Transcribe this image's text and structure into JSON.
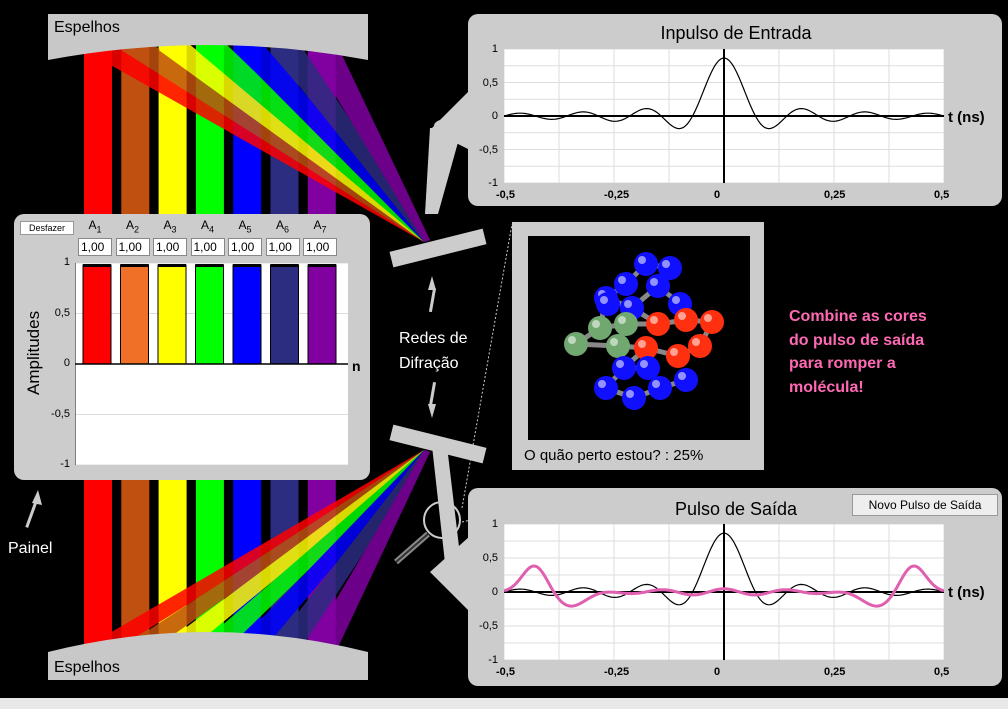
{
  "mirrors": {
    "top_label": "Espelhos",
    "bottom_label": "Espelhos"
  },
  "panel": {
    "undo_button": "Desfazer",
    "ylabel": "Amplitudes",
    "xlabel": "n",
    "yticks": [
      "1",
      "0,5",
      "0",
      "-0,5",
      "-1"
    ],
    "amplitudes": [
      {
        "label": "A",
        "sub": "1",
        "value": "1,00",
        "v": 1.0,
        "color": "#ff0000"
      },
      {
        "label": "A",
        "sub": "2",
        "value": "1,00",
        "v": 1.0,
        "color": "#f07028"
      },
      {
        "label": "A",
        "sub": "3",
        "value": "1,00",
        "v": 1.0,
        "color": "#ffff00"
      },
      {
        "label": "A",
        "sub": "4",
        "value": "1,00",
        "v": 1.0,
        "color": "#00ff00"
      },
      {
        "label": "A",
        "sub": "5",
        "value": "1,00",
        "v": 1.0,
        "color": "#0000ff"
      },
      {
        "label": "A",
        "sub": "6",
        "value": "1,00",
        "v": 1.0,
        "color": "#2c2c80"
      },
      {
        "label": "A",
        "sub": "7",
        "value": "1,00",
        "v": 1.0,
        "color": "#8000a0"
      }
    ]
  },
  "labels": {
    "panel_caption": "Painel",
    "gratings_line1": "Redes de",
    "gratings_line2": "Difração",
    "message": [
      "Combine as cores",
      "do pulso de saída",
      "para romper a",
      "molécula!"
    ]
  },
  "molecule": {
    "progress_label": "O quão perto estou? : 25%"
  },
  "input_plot": {
    "title": "Inpulso de Entrada",
    "xlabel": "t (ns)",
    "xticks": [
      "-0,5",
      "-0,25",
      "0",
      "0,25",
      "0,5"
    ],
    "yticks": [
      "1",
      "0,5",
      "0",
      "-0,5",
      "-1"
    ]
  },
  "output_plot": {
    "title": "Pulso de Saída",
    "new_pulse_button": "Novo Pulso de Saída",
    "xlabel": "t (ns)",
    "xticks": [
      "-0,5",
      "-0,25",
      "0",
      "0,25",
      "0,5"
    ],
    "yticks": [
      "1",
      "0,5",
      "0",
      "-0,5",
      "-1"
    ]
  },
  "colors": {
    "beams": [
      "#ff0000",
      "#c05010",
      "#ffff00",
      "#00ff00",
      "#0000ff",
      "#2c2c80",
      "#8000a0"
    ],
    "output_curve": "#e060b0",
    "message": "#ff69b4"
  }
}
